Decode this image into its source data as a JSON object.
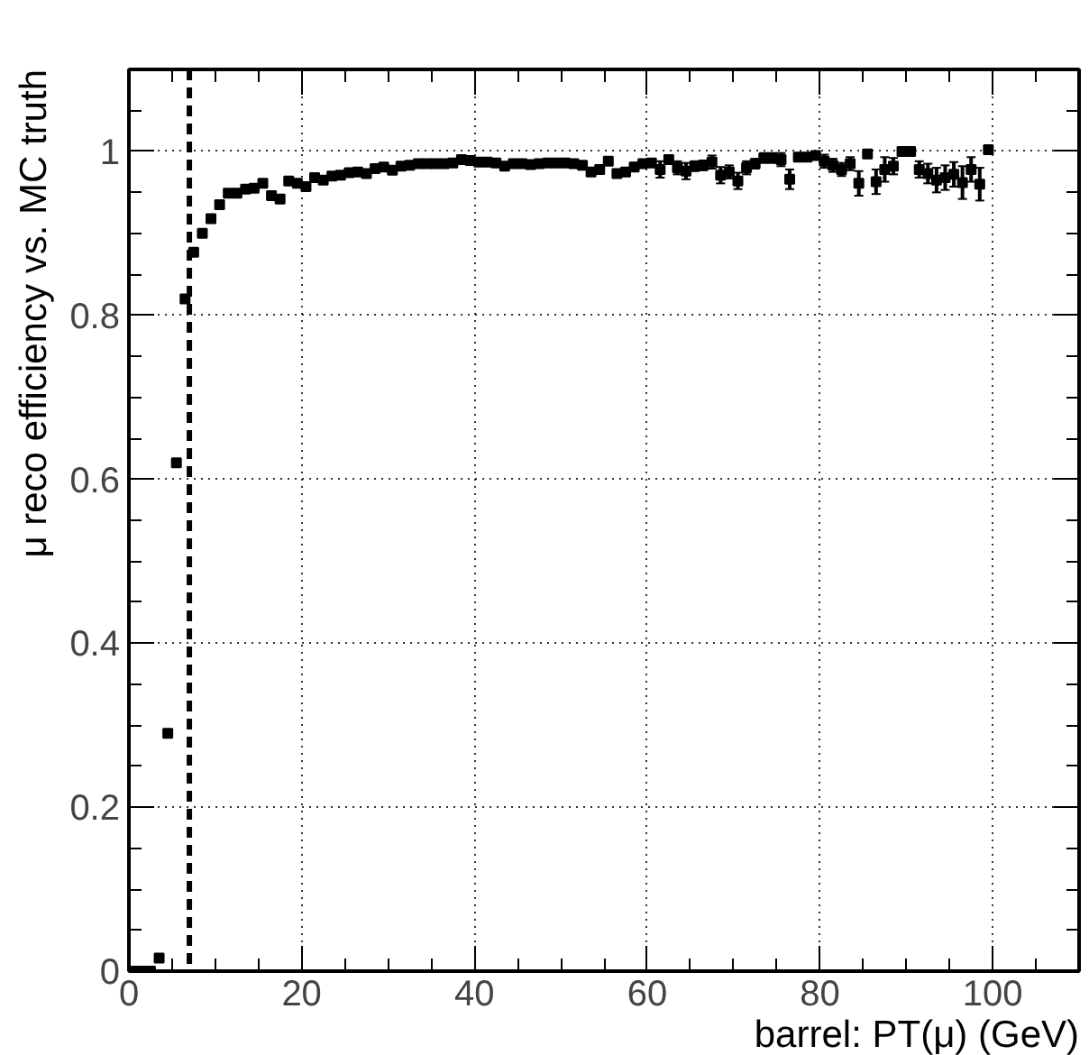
{
  "chart_data": {
    "type": "scatter",
    "xlabel": "barrel: PT(μ) (GeV)",
    "ylabel": "μ reco efficiency vs. MC truth",
    "x": [
      0.5,
      1.5,
      2.5,
      3.5,
      4.5,
      5.5,
      6.5,
      7.5,
      8.5,
      9.5,
      10.5,
      11.5,
      12.5,
      13.5,
      14.5,
      15.5,
      16.5,
      17.5,
      18.5,
      19.5,
      20.5,
      21.5,
      22.5,
      23.5,
      24.5,
      25.5,
      26.5,
      27.5,
      28.5,
      29.5,
      30.5,
      31.5,
      32.5,
      33.5,
      34.5,
      35.5,
      36.5,
      37.5,
      38.5,
      39.5,
      40.5,
      41.5,
      42.5,
      43.5,
      44.5,
      45.5,
      46.5,
      47.5,
      48.5,
      49.5,
      50.5,
      51.5,
      52.5,
      53.5,
      54.5,
      55.5,
      56.5,
      57.5,
      58.5,
      59.5,
      60.5,
      61.5,
      62.5,
      63.5,
      64.5,
      65.5,
      66.5,
      67.5,
      68.5,
      69.5,
      70.5,
      71.5,
      72.5,
      73.5,
      74.5,
      75.5,
      76.5,
      77.5,
      78.5,
      79.5,
      80.5,
      81.5,
      82.5,
      83.5,
      84.5,
      85.5,
      86.5,
      87.5,
      88.5,
      89.5,
      90.5,
      91.5,
      92.5,
      93.5,
      94.5,
      95.5,
      96.5,
      97.5,
      98.5,
      99.5
    ],
    "series": [
      {
        "color": "#000000",
        "values": [
          0,
          0,
          0,
          0.016,
          0.29,
          0.62,
          0.82,
          0.877,
          0.9,
          0.918,
          0.935,
          0.949,
          0.949,
          0.954,
          0.955,
          0.961,
          0.946,
          0.942,
          0.964,
          0.961,
          0.957,
          0.968,
          0.965,
          0.97,
          0.971,
          0.974,
          0.975,
          0.973,
          0.979,
          0.981,
          0.977,
          0.982,
          0.983,
          0.985,
          0.985,
          0.985,
          0.985,
          0.986,
          0.99,
          0.989,
          0.987,
          0.987,
          0.986,
          0.982,
          0.985,
          0.985,
          0.984,
          0.985,
          0.986,
          0.986,
          0.986,
          0.985,
          0.983,
          0.975,
          0.978,
          0.988,
          0.973,
          0.975,
          0.981,
          0.985,
          0.986,
          0.978,
          0.99,
          0.98,
          0.976,
          0.982,
          0.983,
          0.987,
          0.971,
          0.975,
          0.964,
          0.98,
          0.985,
          0.992,
          0.992,
          0.99,
          0.966,
          0.993,
          0.993,
          0.995,
          0.988,
          0.983,
          0.978,
          0.985,
          0.961,
          0.997,
          0.963,
          0.978,
          0.982,
          1.0,
          1.0,
          0.978,
          0.973,
          0.965,
          0.968,
          0.972,
          0.962,
          0.978,
          0.96,
          1.002
        ],
        "errors": [
          null,
          null,
          null,
          null,
          null,
          null,
          null,
          null,
          null,
          null,
          null,
          null,
          null,
          null,
          null,
          null,
          null,
          null,
          null,
          null,
          null,
          null,
          null,
          null,
          null,
          null,
          null,
          null,
          null,
          null,
          null,
          null,
          null,
          null,
          null,
          null,
          null,
          null,
          null,
          null,
          null,
          null,
          null,
          null,
          null,
          null,
          null,
          null,
          null,
          null,
          null,
          null,
          null,
          0.004,
          0.004,
          0.004,
          0.005,
          0.005,
          0.005,
          0.005,
          0.005,
          0.01,
          0.005,
          0.008,
          0.01,
          0.006,
          0.006,
          0.008,
          0.01,
          0.008,
          0.01,
          0.008,
          0.006,
          0.006,
          0.006,
          0.008,
          0.012,
          0.005,
          0.005,
          0.005,
          0.008,
          0.008,
          0.008,
          0.008,
          0.015,
          0.005,
          0.015,
          0.015,
          0.01,
          0.004,
          0.004,
          0.01,
          0.012,
          0.015,
          0.015,
          0.015,
          0.02,
          0.015,
          0.02,
          0.004
        ]
      }
    ],
    "xlim": [
      0,
      110
    ],
    "ylim": [
      0,
      1.1
    ],
    "xticks": [
      0,
      20,
      40,
      60,
      80,
      100
    ],
    "yticks": [
      0,
      0.2,
      0.4,
      0.6,
      0.8,
      1
    ],
    "grid": true,
    "marker": "square",
    "ref_lines": [
      {
        "axis": "x",
        "value": 7,
        "line_style": "dashed",
        "color": "#000000"
      }
    ]
  }
}
